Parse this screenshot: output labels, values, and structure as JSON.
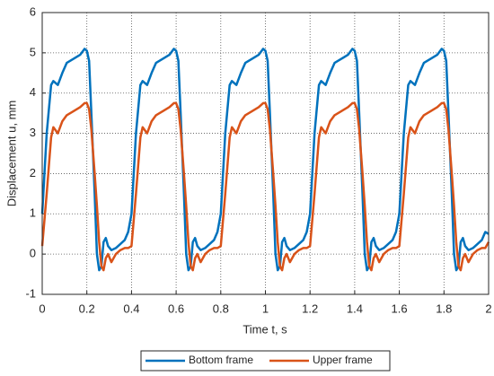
{
  "chart_data": {
    "type": "line",
    "xlabel": "Time t, s",
    "ylabel": "Displacement u, mm",
    "x": [
      0,
      0.02,
      0.04,
      0.05,
      0.07,
      0.09,
      0.11,
      0.14,
      0.17,
      0.19,
      0.2,
      0.21,
      0.22,
      0.235,
      0.245,
      0.255,
      0.265,
      0.275,
      0.285,
      0.295,
      0.31,
      0.33,
      0.35,
      0.37,
      0.385,
      0.4,
      0.42,
      0.44,
      0.45,
      0.47,
      0.49,
      0.51,
      0.54,
      0.57,
      0.59,
      0.6,
      0.61,
      0.62,
      0.635,
      0.645,
      0.655,
      0.665,
      0.675,
      0.685,
      0.695,
      0.71,
      0.73,
      0.75,
      0.77,
      0.785,
      0.8,
      0.82,
      0.84,
      0.85,
      0.87,
      0.89,
      0.91,
      0.94,
      0.97,
      0.99,
      1.0,
      1.01,
      1.02,
      1.035,
      1.045,
      1.055,
      1.065,
      1.075,
      1.085,
      1.095,
      1.11,
      1.13,
      1.15,
      1.17,
      1.185,
      1.2,
      1.22,
      1.24,
      1.25,
      1.27,
      1.29,
      1.31,
      1.34,
      1.37,
      1.39,
      1.4,
      1.41,
      1.42,
      1.435,
      1.445,
      1.455,
      1.465,
      1.475,
      1.485,
      1.495,
      1.51,
      1.53,
      1.55,
      1.57,
      1.585,
      1.6,
      1.62,
      1.64,
      1.65,
      1.67,
      1.69,
      1.71,
      1.74,
      1.77,
      1.79,
      1.8,
      1.81,
      1.82,
      1.835,
      1.845,
      1.855,
      1.865,
      1.875,
      1.885,
      1.895,
      1.91,
      1.93,
      1.95,
      1.97,
      1.985,
      2.0
    ],
    "series": [
      {
        "name": "Bottom frame",
        "color": "#0072bd",
        "values": [
          1.0,
          3.0,
          4.2,
          4.3,
          4.2,
          4.5,
          4.75,
          4.85,
          4.95,
          5.1,
          5.05,
          4.8,
          3.5,
          1.5,
          0.0,
          -0.4,
          -0.3,
          0.3,
          0.4,
          0.2,
          0.1,
          0.15,
          0.25,
          0.35,
          0.55,
          1.0,
          3.0,
          4.2,
          4.3,
          4.2,
          4.5,
          4.75,
          4.85,
          4.95,
          5.1,
          5.05,
          4.8,
          3.5,
          1.5,
          0.0,
          -0.4,
          -0.3,
          0.3,
          0.4,
          0.2,
          0.1,
          0.15,
          0.25,
          0.35,
          0.55,
          1.0,
          3.0,
          4.2,
          4.3,
          4.2,
          4.5,
          4.75,
          4.85,
          4.95,
          5.1,
          5.05,
          4.8,
          3.5,
          1.5,
          0.0,
          -0.4,
          -0.3,
          0.3,
          0.4,
          0.2,
          0.1,
          0.15,
          0.25,
          0.35,
          0.55,
          1.0,
          3.0,
          4.2,
          4.3,
          4.2,
          4.5,
          4.75,
          4.85,
          4.95,
          5.1,
          5.05,
          4.8,
          3.5,
          1.5,
          0.0,
          -0.4,
          -0.3,
          0.3,
          0.4,
          0.2,
          0.1,
          0.15,
          0.25,
          0.35,
          0.55,
          1.0,
          3.0,
          4.2,
          4.3,
          4.2,
          4.5,
          4.75,
          4.85,
          4.95,
          5.1,
          5.05,
          4.8,
          3.5,
          1.5,
          0.0,
          -0.4,
          -0.3,
          0.3,
          0.4,
          0.2,
          0.1,
          0.15,
          0.25,
          0.35,
          0.55,
          0.5
        ]
      },
      {
        "name": "Upper frame",
        "color": "#d95319",
        "values": [
          0.2,
          1.5,
          2.9,
          3.15,
          3.0,
          3.3,
          3.45,
          3.55,
          3.65,
          3.75,
          3.75,
          3.6,
          3.1,
          2.0,
          1.2,
          0.3,
          -0.3,
          -0.4,
          -0.1,
          0.0,
          -0.2,
          0.0,
          0.1,
          0.15,
          0.15,
          0.2,
          1.5,
          2.9,
          3.15,
          3.0,
          3.3,
          3.45,
          3.55,
          3.65,
          3.75,
          3.75,
          3.6,
          3.1,
          2.0,
          1.2,
          0.3,
          -0.3,
          -0.4,
          -0.1,
          0.0,
          -0.2,
          0.0,
          0.1,
          0.15,
          0.15,
          0.2,
          1.5,
          2.9,
          3.15,
          3.0,
          3.3,
          3.45,
          3.55,
          3.65,
          3.75,
          3.75,
          3.6,
          3.1,
          2.0,
          1.2,
          0.3,
          -0.3,
          -0.4,
          -0.1,
          0.0,
          -0.2,
          0.0,
          0.1,
          0.15,
          0.15,
          0.2,
          1.5,
          2.9,
          3.15,
          3.0,
          3.3,
          3.45,
          3.55,
          3.65,
          3.75,
          3.75,
          3.6,
          3.1,
          2.0,
          1.2,
          0.3,
          -0.3,
          -0.4,
          -0.1,
          0.0,
          -0.2,
          0.0,
          0.1,
          0.15,
          0.15,
          0.2,
          1.5,
          2.9,
          3.15,
          3.0,
          3.3,
          3.45,
          3.55,
          3.65,
          3.75,
          3.75,
          3.6,
          3.1,
          2.0,
          1.2,
          0.3,
          -0.3,
          -0.4,
          -0.1,
          0.0,
          -0.2,
          0.0,
          0.1,
          0.15,
          0.15,
          0.3
        ]
      }
    ],
    "xlim": [
      0,
      2
    ],
    "xticks": [
      0,
      0.2,
      0.4,
      0.6,
      0.8,
      1,
      1.2,
      1.4,
      1.6,
      1.8,
      2
    ],
    "ylim": [
      -1,
      6
    ],
    "yticks": [
      -1,
      0,
      1,
      2,
      3,
      4,
      5,
      6
    ],
    "grid": true,
    "legend": "bottom"
  }
}
